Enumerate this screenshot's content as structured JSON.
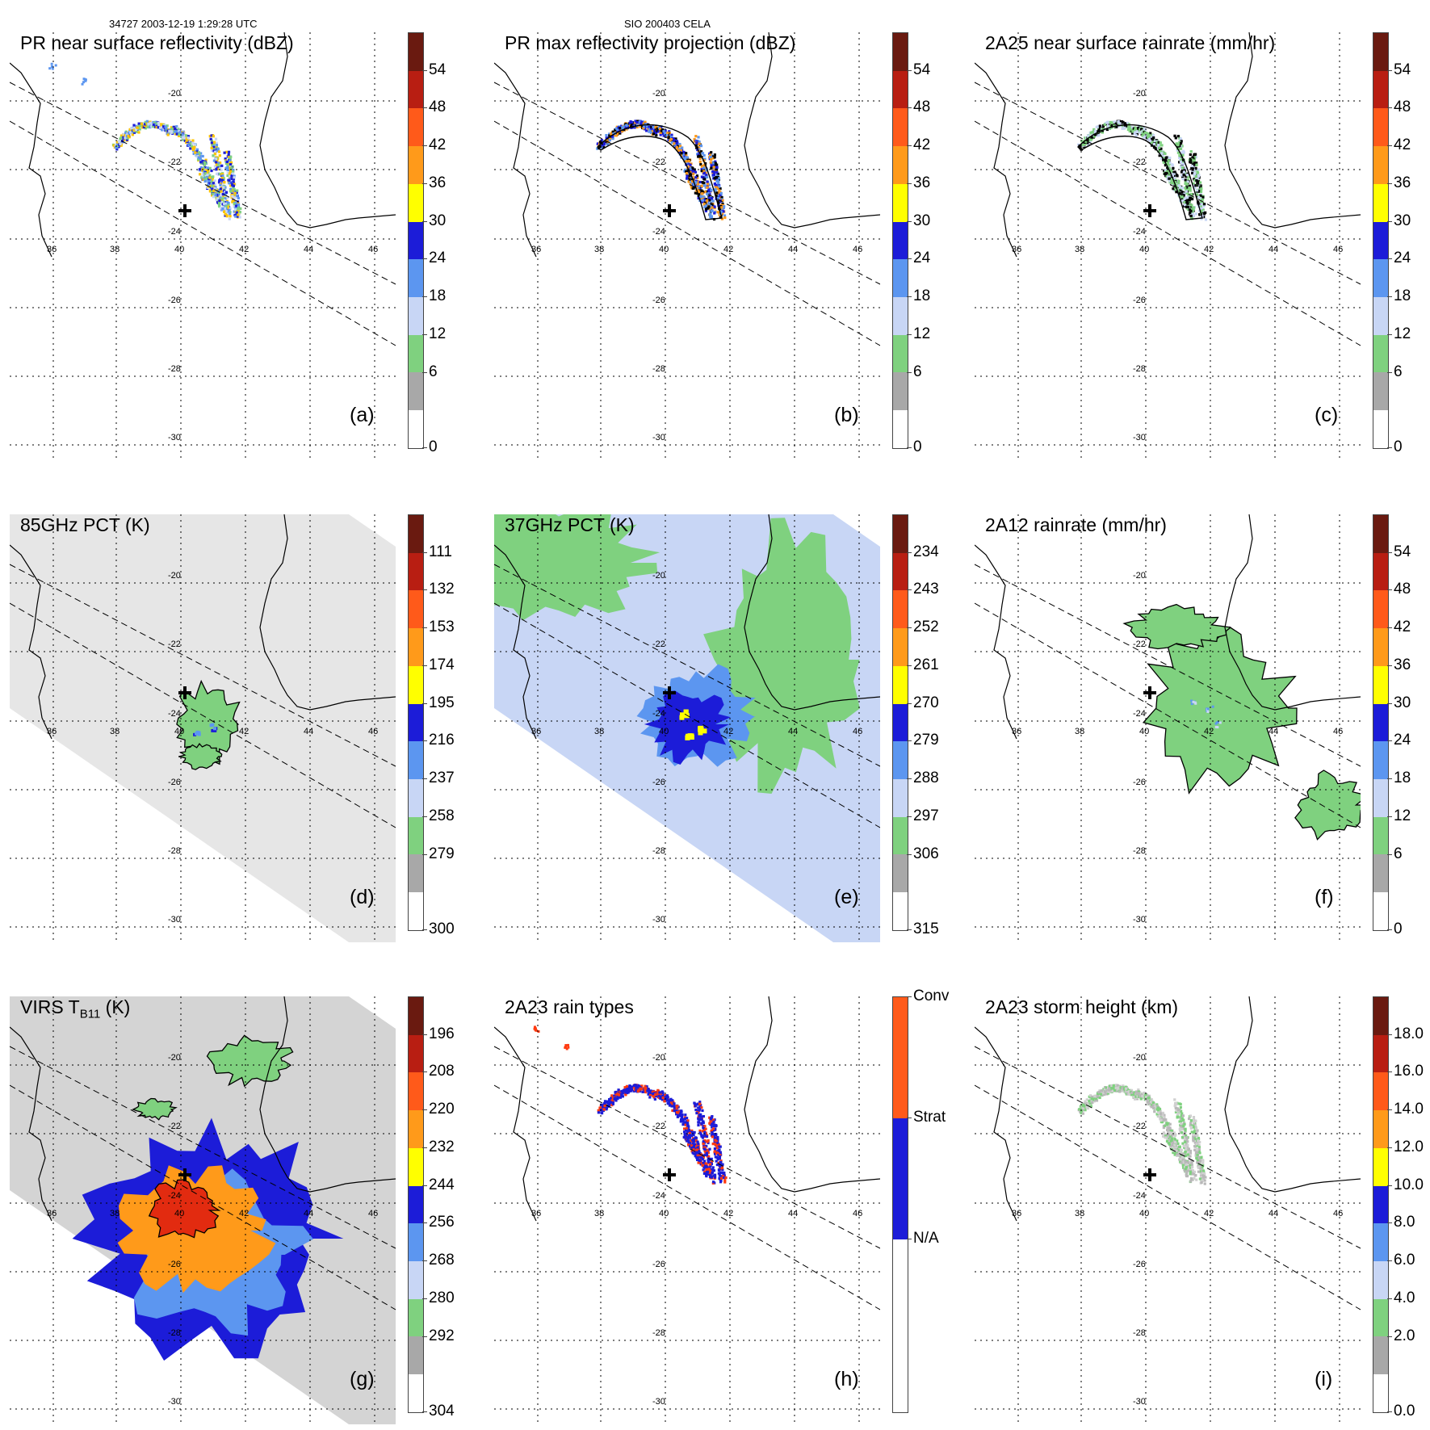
{
  "header": {
    "left": "34727 2003-12-19 1:29:28 UTC",
    "center": "SIO 200403 CELA"
  },
  "map": {
    "lat_labels": [
      "-20",
      "-22",
      "-24",
      "-26",
      "-28",
      "-30"
    ],
    "lon_labels": [
      "36",
      "38",
      "40",
      "42",
      "44",
      "46"
    ]
  },
  "colors": {
    "gray": "#bdbdbd",
    "green": "#7fd17f",
    "lightblue": "#c8d6f5",
    "blue": "#5c96f0",
    "darkblue": "#1c1cd8",
    "yellow": "#ffff00",
    "orange": "#ff9a1a",
    "red": "#e22b10",
    "darkred": "#6a1a10"
  },
  "panels": [
    {
      "id": "a",
      "title": "PR near surface reflectivity (dBZ)",
      "label": "(a)",
      "colorbar": [
        "54",
        "48",
        "42",
        "36",
        "30",
        "24",
        "18",
        "12",
        "6",
        "0"
      ]
    },
    {
      "id": "b",
      "title": "PR max reflectivity projection (dBZ)",
      "label": "(b)",
      "colorbar": [
        "54",
        "48",
        "42",
        "36",
        "30",
        "24",
        "18",
        "12",
        "6",
        "0"
      ]
    },
    {
      "id": "c",
      "title": "2A25 near surface rainrate (mm/hr)",
      "label": "(c)",
      "colorbar": [
        "54",
        "48",
        "42",
        "36",
        "30",
        "24",
        "18",
        "12",
        "6",
        "0"
      ]
    },
    {
      "id": "d",
      "title": "85GHz PCT (K)",
      "label": "(d)",
      "colorbar": [
        "111",
        "132",
        "153",
        "174",
        "195",
        "216",
        "237",
        "258",
        "279",
        "300"
      ]
    },
    {
      "id": "e",
      "title": "37GHz PCT (K)",
      "label": "(e)",
      "colorbar": [
        "234",
        "243",
        "252",
        "261",
        "270",
        "279",
        "288",
        "297",
        "306",
        "315"
      ]
    },
    {
      "id": "f",
      "title": "2A12 rainrate (mm/hr)",
      "label": "(f)",
      "colorbar": [
        "54",
        "48",
        "42",
        "36",
        "30",
        "24",
        "18",
        "12",
        "6",
        "0"
      ]
    },
    {
      "id": "g",
      "title_main": "VIRS T",
      "title_sub": "B11",
      "title_unit": " (K)",
      "label": "(g)",
      "colorbar": [
        "196",
        "208",
        "220",
        "232",
        "244",
        "256",
        "268",
        "280",
        "292",
        "304"
      ]
    },
    {
      "id": "h",
      "title": "2A23 rain types",
      "label": "(h)",
      "colorbar": [
        "Conv",
        "Strat",
        "N/A"
      ]
    },
    {
      "id": "i",
      "title": "2A23 storm height (km)",
      "label": "(i)",
      "colorbar": [
        "18.0",
        "16.0",
        "14.0",
        "12.0",
        "10.0",
        "8.0",
        "6.0",
        "4.0",
        "2.0",
        "0.0"
      ]
    }
  ]
}
